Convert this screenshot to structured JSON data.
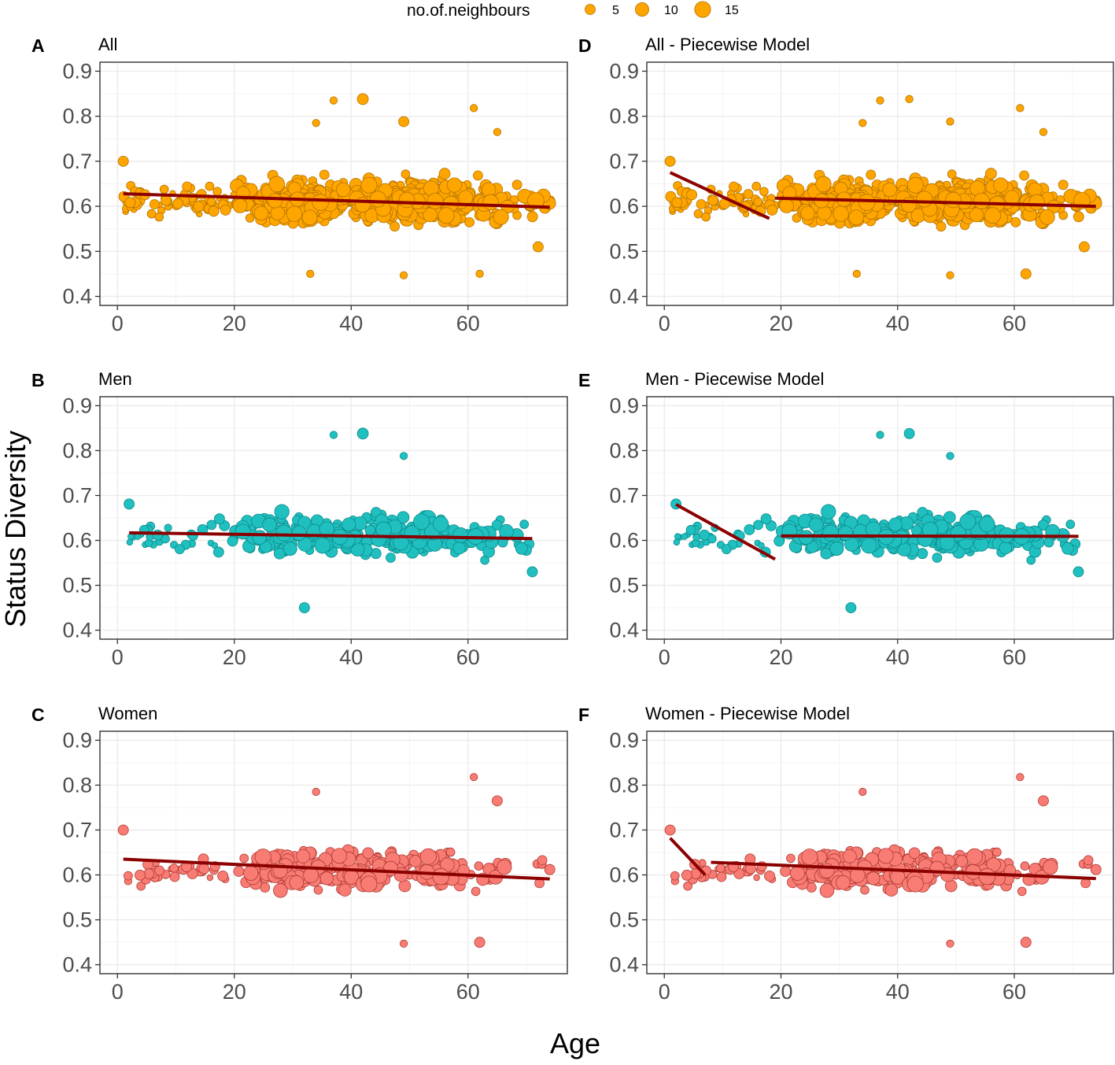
{
  "legend": {
    "title": "no.of.neighbours",
    "sizes": [
      5,
      10,
      15
    ],
    "color": "#FFA500",
    "stroke": "#B37300"
  },
  "axes": {
    "xlabel": "Age",
    "ylabel": "Status Diversity",
    "xlim": [
      -3,
      77
    ],
    "ylim": [
      0.38,
      0.92
    ],
    "xticks": [
      0,
      20,
      40,
      60
    ],
    "xtick_labels": [
      "0",
      "20",
      "40",
      "60"
    ],
    "yticks": [
      0.4,
      0.5,
      0.6,
      0.7,
      0.8,
      0.9
    ],
    "ytick_labels": [
      "0.4",
      "0.5",
      "0.6",
      "0.7",
      "0.8",
      "0.9"
    ],
    "line_color": "#8B0000"
  },
  "chart_data": [
    {
      "tag": "A",
      "title": "All",
      "type": "scatter",
      "fill": "#FFA500",
      "stroke": "#B37300",
      "fit": [
        [
          [
            1,
            0.628
          ],
          [
            74,
            0.598
          ]
        ]
      ],
      "sample": {
        "seed": 11,
        "n": 650,
        "xmin": 1,
        "xmax": 74,
        "ymean": 0.61,
        "ysd": 0.045
      },
      "points": [
        {
          "x": 37,
          "y": 0.835,
          "n": 2
        },
        {
          "x": 42,
          "y": 0.838,
          "n": 6
        },
        {
          "x": 61,
          "y": 0.818,
          "n": 2
        },
        {
          "x": 49,
          "y": 0.788,
          "n": 5
        },
        {
          "x": 65,
          "y": 0.765,
          "n": 2
        },
        {
          "x": 34,
          "y": 0.785,
          "n": 2
        },
        {
          "x": 33,
          "y": 0.45,
          "n": 2
        },
        {
          "x": 49,
          "y": 0.447,
          "n": 2
        },
        {
          "x": 62,
          "y": 0.45,
          "n": 2
        },
        {
          "x": 72,
          "y": 0.51,
          "n": 5
        },
        {
          "x": 74,
          "y": 0.612,
          "n": 5
        },
        {
          "x": 1,
          "y": 0.7,
          "n": 5
        }
      ]
    },
    {
      "tag": "B",
      "title": "Men",
      "type": "scatter",
      "fill": "#20C0C0",
      "stroke": "#0B8A8A",
      "fit": [
        [
          [
            2,
            0.617
          ],
          [
            71,
            0.604
          ]
        ]
      ],
      "sample": {
        "seed": 23,
        "n": 330,
        "xmin": 2,
        "xmax": 71,
        "ymean": 0.61,
        "ysd": 0.043
      },
      "points": [
        {
          "x": 37,
          "y": 0.835,
          "n": 2
        },
        {
          "x": 42,
          "y": 0.838,
          "n": 6
        },
        {
          "x": 49,
          "y": 0.788,
          "n": 2
        },
        {
          "x": 32,
          "y": 0.45,
          "n": 5
        },
        {
          "x": 2,
          "y": 0.681,
          "n": 5
        },
        {
          "x": 71,
          "y": 0.53,
          "n": 5
        }
      ]
    },
    {
      "tag": "C",
      "title": "Women",
      "type": "scatter",
      "fill": "#F87C74",
      "stroke": "#B03A33",
      "fit": [
        [
          [
            1,
            0.635
          ],
          [
            74,
            0.591
          ]
        ]
      ],
      "sample": {
        "seed": 37,
        "n": 300,
        "xmin": 1,
        "xmax": 74,
        "ymean": 0.61,
        "ysd": 0.042
      },
      "points": [
        {
          "x": 61,
          "y": 0.818,
          "n": 2
        },
        {
          "x": 65,
          "y": 0.765,
          "n": 5
        },
        {
          "x": 34,
          "y": 0.785,
          "n": 2
        },
        {
          "x": 49,
          "y": 0.447,
          "n": 2
        },
        {
          "x": 62,
          "y": 0.45,
          "n": 5
        },
        {
          "x": 1,
          "y": 0.7,
          "n": 5
        },
        {
          "x": 74,
          "y": 0.612,
          "n": 5
        }
      ]
    },
    {
      "tag": "D",
      "title": "All - Piecewise Model",
      "type": "scatter",
      "fill": "#FFA500",
      "stroke": "#B37300",
      "fit": [
        [
          [
            1,
            0.675
          ],
          [
            18,
            0.573
          ]
        ],
        [
          [
            19,
            0.618
          ],
          [
            74,
            0.6
          ]
        ]
      ],
      "sample": {
        "seed": 11,
        "n": 650,
        "xmin": 1,
        "xmax": 74,
        "ymean": 0.61,
        "ysd": 0.045
      },
      "points": [
        {
          "x": 37,
          "y": 0.835,
          "n": 2
        },
        {
          "x": 42,
          "y": 0.838,
          "n": 2
        },
        {
          "x": 61,
          "y": 0.818,
          "n": 2
        },
        {
          "x": 49,
          "y": 0.788,
          "n": 2
        },
        {
          "x": 65,
          "y": 0.765,
          "n": 2
        },
        {
          "x": 34,
          "y": 0.785,
          "n": 2
        },
        {
          "x": 33,
          "y": 0.45,
          "n": 2
        },
        {
          "x": 49,
          "y": 0.447,
          "n": 2
        },
        {
          "x": 62,
          "y": 0.45,
          "n": 5
        },
        {
          "x": 72,
          "y": 0.51,
          "n": 5
        },
        {
          "x": 74,
          "y": 0.612,
          "n": 5
        },
        {
          "x": 1,
          "y": 0.7,
          "n": 5
        }
      ]
    },
    {
      "tag": "E",
      "title": "Men - Piecewise Model",
      "type": "scatter",
      "fill": "#20C0C0",
      "stroke": "#0B8A8A",
      "fit": [
        [
          [
            2,
            0.68
          ],
          [
            19,
            0.558
          ]
        ],
        [
          [
            20,
            0.61
          ],
          [
            71,
            0.609
          ]
        ]
      ],
      "sample": {
        "seed": 23,
        "n": 330,
        "xmin": 2,
        "xmax": 71,
        "ymean": 0.61,
        "ysd": 0.043
      },
      "points": [
        {
          "x": 37,
          "y": 0.835,
          "n": 2
        },
        {
          "x": 42,
          "y": 0.838,
          "n": 5
        },
        {
          "x": 49,
          "y": 0.788,
          "n": 2
        },
        {
          "x": 32,
          "y": 0.45,
          "n": 5
        },
        {
          "x": 2,
          "y": 0.681,
          "n": 5
        },
        {
          "x": 71,
          "y": 0.53,
          "n": 5
        }
      ]
    },
    {
      "tag": "F",
      "title": "Women - Piecewise Model",
      "type": "scatter",
      "fill": "#F87C74",
      "stroke": "#B03A33",
      "fit": [
        [
          [
            1,
            0.682
          ],
          [
            7,
            0.6
          ]
        ],
        [
          [
            8,
            0.628
          ],
          [
            74,
            0.592
          ]
        ]
      ],
      "sample": {
        "seed": 37,
        "n": 300,
        "xmin": 1,
        "xmax": 74,
        "ymean": 0.61,
        "ysd": 0.042
      },
      "points": [
        {
          "x": 61,
          "y": 0.818,
          "n": 2
        },
        {
          "x": 65,
          "y": 0.765,
          "n": 5
        },
        {
          "x": 34,
          "y": 0.785,
          "n": 2
        },
        {
          "x": 49,
          "y": 0.447,
          "n": 2
        },
        {
          "x": 62,
          "y": 0.45,
          "n": 5
        },
        {
          "x": 1,
          "y": 0.7,
          "n": 5
        },
        {
          "x": 74,
          "y": 0.612,
          "n": 5
        }
      ]
    }
  ]
}
